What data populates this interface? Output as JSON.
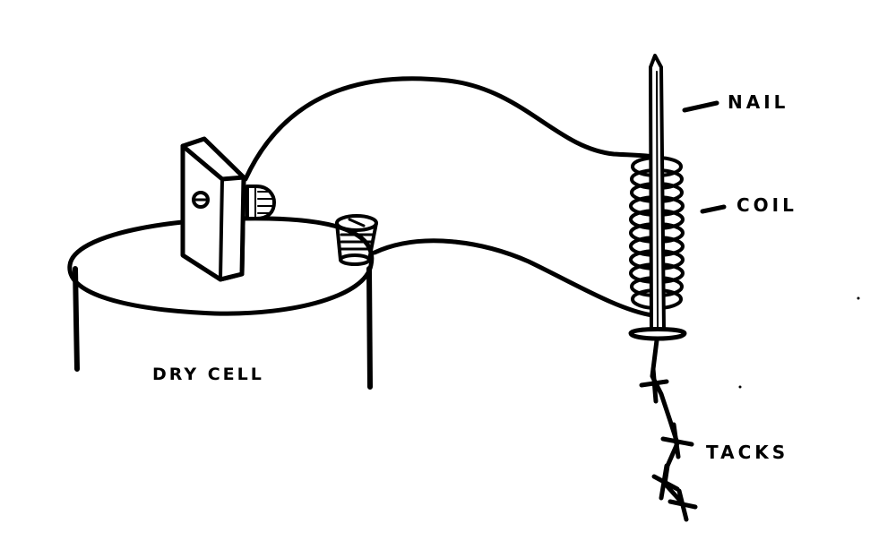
{
  "diagram": {
    "labels": {
      "nail": "NAIL",
      "coil": "COIL",
      "tacks": "TACKS",
      "dry_cell": "DRY CELL"
    },
    "colors": {
      "ink": "#000000",
      "paper": "#ffffff"
    }
  }
}
